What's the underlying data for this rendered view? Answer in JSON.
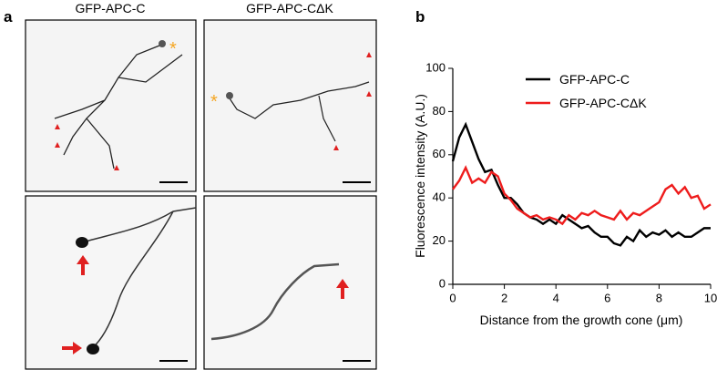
{
  "panel_a": {
    "label": "a",
    "columns": [
      "GFP-APC-C",
      "GFP-APC-CΔK"
    ]
  },
  "chart_data": {
    "type": "line",
    "label": "b",
    "xlabel": "Distance from the growth cone (μm)",
    "ylabel": "Fluorescence intensity (A.U.)",
    "x": [
      0,
      0.25,
      0.5,
      0.75,
      1,
      1.25,
      1.5,
      1.75,
      2,
      2.25,
      2.5,
      2.75,
      3,
      3.25,
      3.5,
      3.75,
      4,
      4.25,
      4.5,
      4.75,
      5,
      5.25,
      5.5,
      5.75,
      6,
      6.25,
      6.5,
      6.75,
      7,
      7.25,
      7.5,
      7.75,
      8,
      8.25,
      8.5,
      8.75,
      9,
      9.25,
      9.5,
      9.75,
      10
    ],
    "series": [
      {
        "name": "GFP-APC-C",
        "color": "#000000",
        "values": [
          57,
          68,
          74,
          66,
          58,
          52,
          53,
          46,
          40,
          40,
          37,
          33,
          31,
          30,
          28,
          30,
          28,
          32,
          30,
          28,
          26,
          27,
          24,
          22,
          22,
          19,
          18,
          22,
          20,
          25,
          22,
          24,
          23,
          25,
          22,
          24,
          22,
          22,
          24,
          26,
          26
        ]
      },
      {
        "name": "GFP-APC-CΔK",
        "color": "#ee1c1c",
        "values": [
          44,
          48,
          54,
          47,
          49,
          47,
          52,
          50,
          42,
          39,
          35,
          33,
          31,
          32,
          30,
          31,
          30,
          28,
          32,
          30,
          33,
          32,
          34,
          32,
          31,
          30,
          34,
          30,
          33,
          32,
          34,
          36,
          38,
          44,
          46,
          42,
          45,
          40,
          41,
          35,
          37
        ]
      }
    ],
    "xlim": [
      0,
      10
    ],
    "xticks": [
      0,
      2,
      4,
      6,
      8,
      10
    ],
    "ylim": [
      0,
      100
    ],
    "yticks": [
      0,
      20,
      40,
      60,
      80,
      100
    ]
  }
}
